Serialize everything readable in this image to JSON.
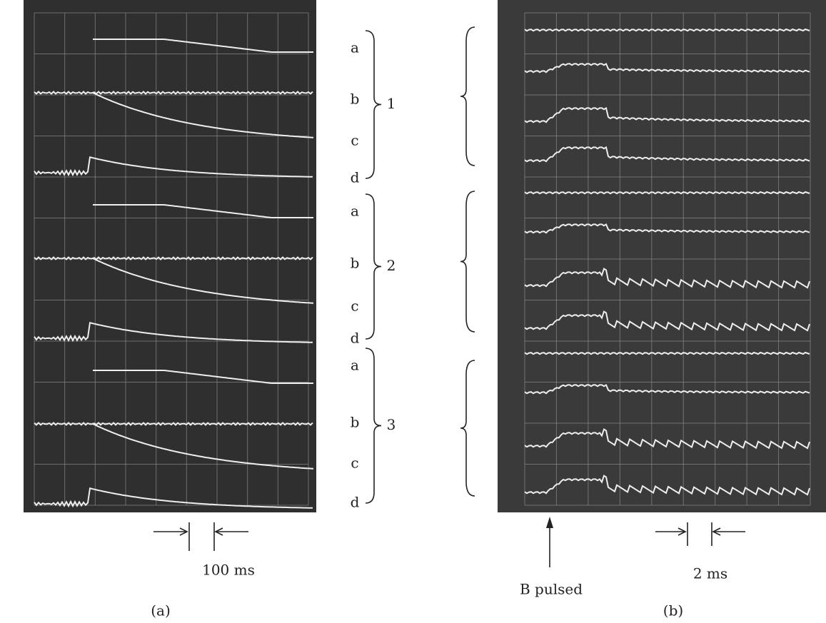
{
  "panel_a": {
    "label": "(a)",
    "scale": "100 ms",
    "groups": [
      {
        "number": "1",
        "traces": [
          "a",
          "b",
          "c",
          "d"
        ]
      },
      {
        "number": "2",
        "traces": [
          "a",
          "b",
          "c",
          "d"
        ]
      },
      {
        "number": "3",
        "traces": [
          "a",
          "b",
          "c",
          "d"
        ]
      }
    ]
  },
  "panel_b": {
    "label": "(b)",
    "scale": "2 ms",
    "marker": "B pulsed"
  }
}
